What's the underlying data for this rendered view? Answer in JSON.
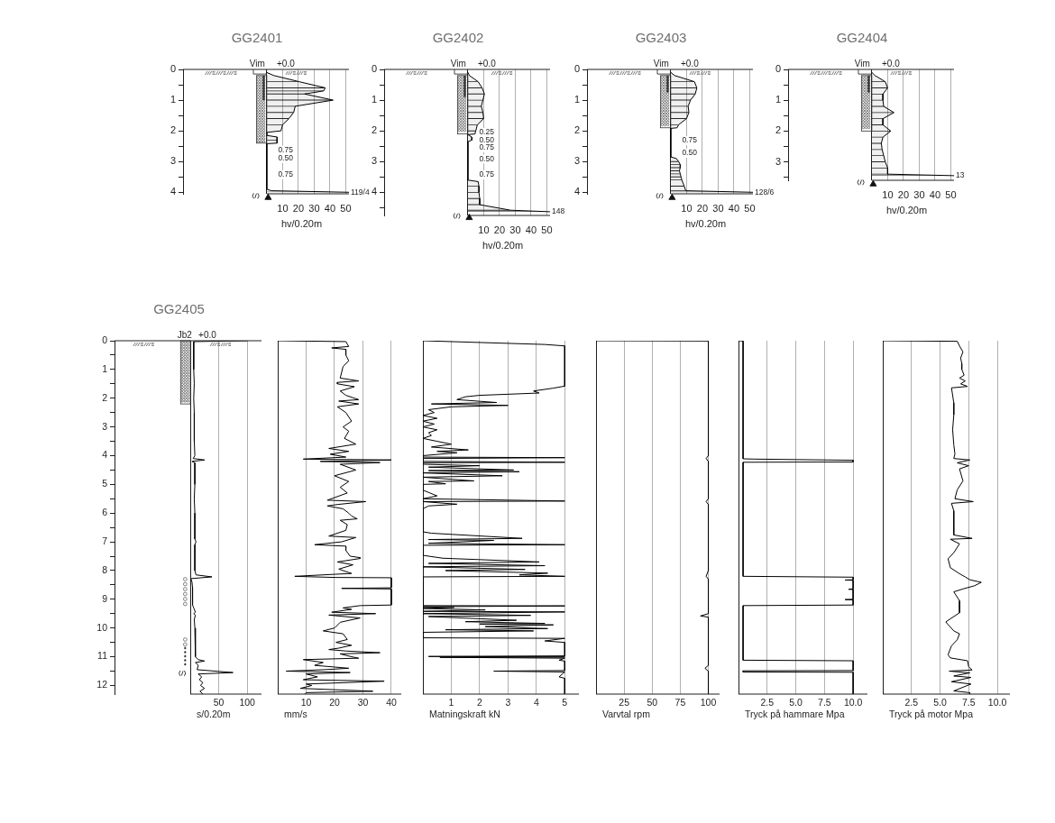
{
  "chart_data": [
    {
      "type": "area",
      "orientation": "horizontal",
      "title": "GG2401",
      "xlabel": "hv/0.20m",
      "x": [
        0.1,
        0.2,
        0.4,
        0.6,
        0.7,
        0.8,
        1,
        1.2,
        1.4,
        1.6,
        1.8,
        2,
        2.05,
        2.15,
        2.2,
        2.3,
        2.4,
        2.42,
        3.9,
        3.95,
        4
      ],
      "values": [
        0,
        4.5,
        20.5,
        37,
        36,
        24,
        42,
        18,
        17,
        14,
        10,
        9,
        0,
        0,
        6.5,
        6.5,
        6.5,
        0,
        0,
        3,
        52
      ],
      "color": "#000000",
      "xlim": [
        -53,
        52
      ],
      "ylim": [
        4.05,
        0
      ],
      "xticks": [
        {
          "value": 0,
          "label": null
        },
        10,
        20,
        30,
        40,
        50
      ],
      "yticks": [
        0,
        {
          "value": 0.5,
          "label": null
        },
        1,
        {
          "value": 1.5,
          "label": null
        },
        2,
        {
          "value": 2.5,
          "label": null
        },
        3,
        {
          "value": 3.5,
          "label": null
        },
        4
      ],
      "grid": "x",
      "ref_lines": [
        {
          "axis": "y",
          "value": 0
        }
      ],
      "annotations": [
        {
          "text": "Vim",
          "x": -6,
          "y": 0
        },
        {
          "text": "+0.0",
          "x": 12,
          "y": 0
        },
        "0.75",
        "0.50",
        "0.75",
        {
          "text": "119/4",
          "x": 52,
          "y": 4
        }
      ]
    },
    {
      "type": "area",
      "orientation": "horizontal",
      "title": "GG2402",
      "xlabel": "hv/0.20m",
      "x": [
        0.1,
        0.2,
        0.4,
        0.6,
        0.8,
        1,
        1.2,
        1.4,
        1.6,
        1.8,
        2,
        2.1,
        2.12,
        2.2,
        2.3,
        2.35,
        3.6,
        3.65,
        3.8,
        4,
        4.2,
        4.4,
        4.58,
        4.63
      ],
      "values": [
        0,
        1,
        6.5,
        9,
        10.5,
        9.5,
        8.5,
        9.5,
        10,
        6,
        5,
        4.5,
        0,
        2.5,
        2.5,
        0,
        0,
        6.5,
        7,
        7,
        7.5,
        7.5,
        27,
        52
      ],
      "color": "#000000",
      "xlim": [
        -53,
        52
      ],
      "ylim": [
        4.75,
        0
      ],
      "xticks": [
        {
          "value": 0,
          "label": null
        },
        10,
        20,
        30,
        40,
        50
      ],
      "yticks": [
        0,
        {
          "value": 0.5,
          "label": null
        },
        1,
        {
          "value": 1.5,
          "label": null
        },
        2,
        {
          "value": 2.5,
          "label": null
        },
        3,
        {
          "value": 3.5,
          "label": null
        },
        4,
        {
          "value": 4.5,
          "label": null
        }
      ],
      "grid": "x",
      "ref_lines": [
        {
          "axis": "y",
          "value": 0
        }
      ],
      "annotations": [
        {
          "text": "Vim",
          "x": -6,
          "y": 0
        },
        {
          "text": "+0.0",
          "x": 12,
          "y": 0
        },
        "0.25",
        "0.50",
        "0.75",
        "0.50",
        "0.75",
        {
          "text": "148",
          "x": 52,
          "y": 4.63
        }
      ]
    },
    {
      "type": "area",
      "orientation": "horizontal",
      "title": "GG2403",
      "xlabel": "hv/0.20m",
      "x": [
        0.1,
        0.2,
        0.4,
        0.6,
        0.8,
        1,
        1.2,
        1.4,
        1.6,
        1.8,
        1.9,
        1.92,
        2.85,
        2.9,
        3,
        3.1,
        3.2,
        3.3,
        3.4,
        3.5,
        3.6,
        3.8,
        3.95,
        4
      ],
      "values": [
        0,
        2.5,
        15,
        16.5,
        15.5,
        12.5,
        11,
        11.5,
        10,
        5,
        4,
        0,
        0,
        3.5,
        5,
        6,
        6,
        5.5,
        6,
        6.5,
        7,
        8.5,
        9.5,
        52
      ],
      "color": "#000000",
      "xlim": [
        -53,
        52
      ],
      "ylim": [
        4.05,
        0
      ],
      "xticks": [
        {
          "value": 0,
          "label": null
        },
        10,
        20,
        30,
        40,
        50
      ],
      "yticks": [
        0,
        {
          "value": 0.5,
          "label": null
        },
        1,
        {
          "value": 1.5,
          "label": null
        },
        2,
        {
          "value": 2.5,
          "label": null
        },
        3,
        {
          "value": 3.5,
          "label": null
        },
        4
      ],
      "grid": "x",
      "ref_lines": [
        {
          "axis": "y",
          "value": 0
        }
      ],
      "annotations": [
        {
          "text": "Vim",
          "x": -6,
          "y": 0
        },
        {
          "text": "+0.0",
          "x": 12,
          "y": 0
        },
        "0.75",
        "0.50",
        {
          "text": "128/6",
          "x": 52,
          "y": 4
        }
      ]
    },
    {
      "type": "area",
      "orientation": "horizontal",
      "title": "GG2404",
      "xlabel": "hv/0.20m",
      "x": [
        0.1,
        0.2,
        0.4,
        0.6,
        0.8,
        1,
        1.2,
        1.4,
        1.6,
        1.8,
        2,
        2.2,
        2.4,
        2.6,
        2.8,
        3,
        3.2,
        3.4,
        3.45
      ],
      "values": [
        0,
        2,
        8.5,
        10,
        7,
        7,
        7.5,
        14,
        7,
        7,
        12,
        7,
        6,
        6.5,
        7.5,
        8.5,
        10,
        10,
        52
      ],
      "color": "#000000",
      "xlim": [
        -53,
        52
      ],
      "ylim": [
        3.6,
        0
      ],
      "xticks": [
        {
          "value": 0,
          "label": null
        },
        10,
        20,
        30,
        40,
        50
      ],
      "yticks": [
        0,
        {
          "value": 0.5,
          "label": null
        },
        1,
        {
          "value": 1.5,
          "label": null
        },
        2,
        {
          "value": 2.5,
          "label": null
        },
        3,
        {
          "value": 3.5,
          "label": null
        }
      ],
      "grid": "x",
      "ref_lines": [
        {
          "axis": "y",
          "value": 0
        }
      ],
      "annotations": [
        {
          "text": "Vim",
          "x": -6,
          "y": 0
        },
        {
          "text": "+0.0",
          "x": 12,
          "y": 0
        },
        {
          "text": "13",
          "x": 52,
          "y": 3.45
        }
      ]
    },
    {
      "type": "line",
      "orientation": "horizontal",
      "title": "GG2405",
      "xlabel": "s/0.20m",
      "x": [
        0,
        0.03,
        0.5,
        1,
        1.5,
        2,
        2.5,
        3,
        3.5,
        4,
        4.1,
        4.15,
        4.2,
        4.25,
        4.5,
        5,
        5.5,
        6,
        6.5,
        6.9,
        7,
        7.1,
        7.5,
        8,
        8.15,
        8.22,
        8.28,
        8.4,
        8.6,
        9,
        9.2,
        9.3,
        9.45,
        9.5,
        9.55,
        9.7,
        10,
        10.5,
        11,
        11.1,
        11.15,
        11.2,
        11.3,
        11.45,
        11.55,
        11.6,
        11.7,
        11.8,
        11.9,
        12,
        12.1,
        12.2,
        12.3
      ],
      "values": [
        100,
        6,
        6,
        6,
        7,
        6,
        7,
        7,
        7,
        8,
        5,
        25,
        3,
        8,
        8,
        8,
        7,
        8,
        8,
        8,
        10,
        8,
        8,
        8,
        10,
        38,
        1,
        3,
        4,
        4,
        4,
        6,
        9,
        6,
        9,
        7,
        8,
        9,
        9,
        14,
        25,
        9,
        14,
        12,
        75,
        14,
        20,
        16,
        22,
        18,
        25,
        17,
        22
      ],
      "color": "#000000",
      "xlim": [
        -133,
        125
      ],
      "ylim": [
        12.3,
        0
      ],
      "xticks": [
        {
          "value": 0,
          "label": null
        },
        50,
        100
      ],
      "yticks": [
        0,
        {
          "value": 0.5,
          "label": null
        },
        1,
        {
          "value": 1.5,
          "label": null
        },
        2,
        {
          "value": 2.5,
          "label": null
        },
        3,
        {
          "value": 3.5,
          "label": null
        },
        4,
        {
          "value": 4.5,
          "label": null
        },
        5,
        {
          "value": 5.5,
          "label": null
        },
        6,
        {
          "value": 6.5,
          "label": null
        },
        7,
        {
          "value": 7.5,
          "label": null
        },
        8,
        {
          "value": 8.5,
          "label": null
        },
        9,
        {
          "value": 9.5,
          "label": null
        },
        10,
        {
          "value": 10.5,
          "label": null
        },
        11,
        {
          "value": 11.5,
          "label": null
        },
        12
      ],
      "grid": "x",
      "ref_lines": [
        {
          "axis": "y",
          "value": 0
        }
      ],
      "annotations": [
        {
          "text": "Jb2",
          "x": -10,
          "y": 0
        },
        {
          "text": "+0.0",
          "x": 30,
          "y": 0
        }
      ]
    },
    {
      "type": "line",
      "orientation": "horizontal",
      "xlabel": "mm/s",
      "x": [
        0,
        0.03,
        0.2,
        0.25,
        0.3,
        0.5,
        0.7,
        0.9,
        1.1,
        1.3,
        1.4,
        1.45,
        1.5,
        1.6,
        1.75,
        1.9,
        2.05,
        2.1,
        2.2,
        2.3,
        2.5,
        2.8,
        3,
        3.15,
        3.4,
        3.6,
        3.75,
        3.85,
        3.95,
        4.05,
        4.12,
        4.15,
        4.2,
        4.24,
        4.3,
        4.5,
        4.7,
        4.9,
        5.1,
        5.3,
        5.55,
        5.6,
        5.7,
        5.75,
        5.85,
        6,
        6.1,
        6.2,
        6.25,
        6.4,
        6.6,
        6.8,
        6.85,
        7,
        7.1,
        7.15,
        7.3,
        7.5,
        7.55,
        7.58,
        7.7,
        7.8,
        7.95,
        8.1,
        8.2,
        8.24,
        8.25,
        8.6,
        8.62,
        8.64,
        9.2,
        9.22,
        9.3,
        9.35,
        9.45,
        9.5,
        9.55,
        9.65,
        9.8,
        10,
        10.1,
        10.2,
        10.4,
        10.5,
        10.6,
        10.7,
        10.75,
        10.8,
        10.86,
        10.9,
        11,
        11.05,
        11.1,
        11.2,
        11.3,
        11.4,
        11.45,
        11.5,
        11.55,
        11.6,
        11.7,
        11.8,
        11.85,
        11.95,
        12,
        12.1,
        12.2,
        12.25,
        12.3
      ],
      "values": [
        0,
        24,
        25,
        19,
        24,
        24,
        25,
        23,
        22.5,
        22,
        28.5,
        21,
        21,
        27,
        22,
        24,
        28.5,
        21.5,
        28.5,
        21,
        24,
        26,
        23,
        25,
        23.5,
        27.5,
        18,
        25,
        18.5,
        24,
        9,
        40,
        15,
        36,
        22,
        27.5,
        20,
        25,
        22,
        24.5,
        17.5,
        31,
        21,
        17.5,
        23,
        25,
        26,
        28,
        22,
        24.5,
        24,
        18,
        27.5,
        22.5,
        13,
        24,
        24,
        25.5,
        29,
        29,
        21,
        26.5,
        21.5,
        26,
        6,
        20,
        40,
        40,
        22.5,
        40,
        40,
        29,
        23,
        26,
        19,
        34.5,
        18,
        29,
        22,
        20,
        16,
        23,
        24.5,
        20.5,
        26,
        21.5,
        18,
        24,
        36,
        22,
        26,
        28.5,
        9,
        16,
        13,
        25,
        16.5,
        3,
        25.5,
        10,
        14,
        9,
        37.5,
        10,
        12,
        8,
        33.5,
        10,
        9.5
      ],
      "color": "#000000",
      "xlim": [
        0,
        43.5
      ],
      "ylim": [
        12.3,
        0
      ],
      "xticks": [
        {
          "value": 0,
          "label": null
        },
        10,
        20,
        30,
        40
      ],
      "grid": "x",
      "tick_labels": "x"
    },
    {
      "type": "line",
      "orientation": "horizontal",
      "xlabel": "Matningskraft kN",
      "x": [
        0,
        0.13,
        0.18,
        1.58,
        1.65,
        1.75,
        1.82,
        1.9,
        1.95,
        2.05,
        2.15,
        2.2,
        2.25,
        2.3,
        2.4,
        2.5,
        2.6,
        2.7,
        2.8,
        2.9,
        3,
        3.1,
        3.2,
        3.3,
        3.4,
        3.5,
        3.6,
        3.7,
        3.8,
        3.85,
        3.9,
        4,
        4.05,
        4.07,
        4.1,
        4.2,
        4.23,
        4.25,
        4.3,
        4.35,
        4.4,
        4.5,
        4.52,
        4.56,
        4.6,
        4.7,
        4.75,
        4.88,
        4.9,
        4.98,
        5,
        5.2,
        5.4,
        5.5,
        5.58,
        5.6,
        5.69,
        5.75,
        5.85,
        6.65,
        6.7,
        6.88,
        6.92,
        6.95,
        7.05,
        7.1,
        7.12,
        7.47,
        7.57,
        7.7,
        7.75,
        7.83,
        7.87,
        7.96,
        8,
        8.09,
        8.15,
        8.2,
        8.22,
        9.22,
        9.23,
        9.26,
        9.28,
        9.32,
        9.37,
        9.42,
        9.44,
        9.5,
        9.56,
        9.6,
        9.73,
        9.78,
        9.84,
        9.86,
        9.89,
        9.95,
        10.02,
        10.06,
        10.1,
        10.15,
        10.34,
        10.36,
        10.45,
        10.5,
        10.97,
        10.99,
        11.01,
        11.02,
        11.05,
        11.12,
        11.15,
        11.48,
        11.5,
        11.53,
        11.7,
        11.75,
        12.3
      ],
      "values": [
        0,
        4.3,
        5,
        5,
        4.6,
        3.9,
        4.1,
        2,
        1.5,
        1.2,
        2.6,
        0.3,
        3,
        1,
        0.2,
        0.4,
        0,
        0.5,
        0,
        0.4,
        0,
        0.5,
        0.2,
        0.3,
        0,
        0.5,
        1,
        0.3,
        1.6,
        0.5,
        1.2,
        0,
        0,
        5,
        0,
        0,
        5,
        0,
        0,
        2,
        0.2,
        3.2,
        0.2,
        3.4,
        0,
        2.8,
        0,
        1.8,
        0.2,
        0.8,
        0,
        0,
        0.5,
        0,
        5,
        0,
        1.2,
        0.2,
        0,
        0,
        0.3,
        3.5,
        0.2,
        2.5,
        0.2,
        5,
        0,
        0,
        0.7,
        4.1,
        0.2,
        4.3,
        0,
        3.6,
        0.8,
        4.4,
        3.4,
        5,
        0,
        0,
        5,
        0,
        1.1,
        0,
        2.2,
        0,
        5,
        0,
        3.8,
        0.2,
        3.3,
        1.5,
        4.3,
        2,
        4.6,
        2.2,
        4.4,
        0.8,
        3.9,
        0,
        0,
        5,
        4.3,
        5,
        5,
        0.2,
        5,
        0.6,
        5,
        4.8,
        5,
        5,
        2.5,
        5,
        4.8,
        5,
        5
      ],
      "color": "#000000",
      "xlim": [
        0,
        5.5
      ],
      "ylim": [
        12.3,
        0
      ],
      "xticks": [
        {
          "value": 0,
          "label": null
        },
        1,
        2,
        3,
        4,
        5
      ],
      "grid": "x",
      "tick_labels": "x"
    },
    {
      "type": "line",
      "orientation": "horizontal",
      "xlabel": "Varvtal rpm",
      "x": [
        0,
        0.01,
        4,
        4.1,
        4.2,
        5.5,
        5.6,
        5.7,
        8,
        8.2,
        8.3,
        9.5,
        9.58,
        9.62,
        11.3,
        11.4,
        11.5,
        12.3
      ],
      "values": [
        0,
        100,
        100,
        98,
        100,
        100,
        98,
        100,
        100,
        98,
        100,
        100,
        93,
        100,
        100,
        97,
        100,
        100
      ],
      "color": "#000000",
      "xlim": [
        0,
        110
      ],
      "ylim": [
        12.3,
        0
      ],
      "xticks": [
        {
          "value": 0,
          "label": null
        },
        25,
        50,
        75,
        100
      ],
      "grid": "x",
      "tick_labels": "x"
    },
    {
      "type": "line",
      "orientation": "horizontal",
      "xlabel": "Tryck på hammare Mpa",
      "x": [
        0,
        0.01,
        4.11,
        4.12,
        4.16,
        4.22,
        4.23,
        8.2,
        8.23,
        8.32,
        8.33,
        8.34,
        8.64,
        8.65,
        8.66,
        9,
        9.01,
        9.02,
        9.2,
        9.22,
        11.12,
        11.14,
        11.48,
        11.49,
        11.53,
        11.54,
        12.3
      ],
      "values": [
        0,
        0.4,
        0.4,
        1.4,
        10,
        10,
        0.4,
        0.4,
        10,
        10,
        9.3,
        10,
        10,
        9.6,
        10,
        10,
        9.3,
        10,
        10,
        0.4,
        0.4,
        10,
        10,
        0.4,
        0.4,
        10,
        10
      ],
      "color": "#000000",
      "xlim": [
        0,
        11.25
      ],
      "ylim": [
        12.3,
        0
      ],
      "xticks": [
        {
          "value": 0,
          "label": null
        },
        2.5,
        {
          "value": 5,
          "label": "5.0"
        },
        7.5,
        {
          "value": 10,
          "label": "10.0"
        }
      ],
      "grid": "x",
      "tick_labels": "x"
    },
    {
      "type": "line",
      "orientation": "horizontal",
      "xlabel": "Tryck på motor Mpa",
      "x": [
        0,
        0.02,
        0.18,
        0.39,
        0.6,
        0.8,
        1,
        1.2,
        1.3,
        1.4,
        1.5,
        1.59,
        1.64,
        2.16,
        2.58,
        3.1,
        3.62,
        3.94,
        4.1,
        4.15,
        4.25,
        4.35,
        4.46,
        4.88,
        5.19,
        5.5,
        5.6,
        5.66,
        5.92,
        6.76,
        6.88,
        6.91,
        7.07,
        7.38,
        7.59,
        7.9,
        8.11,
        8.22,
        8.32,
        8.41,
        8.53,
        8.64,
        8.74,
        9.05,
        9.47,
        9.68,
        9.79,
        10.1,
        10.2,
        10.41,
        10.62,
        10.93,
        11.04,
        11.14,
        11.35,
        11.46,
        11.5,
        11.56,
        11.67,
        11.72,
        11.87,
        11.95,
        12.19,
        12.25,
        12.3
      ],
      "values": [
        0,
        6.5,
        6.7,
        7,
        6.8,
        6.9,
        6.9,
        7.1,
        6.7,
        7.2,
        6.8,
        7.4,
        6,
        6.2,
        6.2,
        6.1,
        6.2,
        6.3,
        6.2,
        7.6,
        6.5,
        7.5,
        6.7,
        7,
        6.5,
        6.3,
        7.9,
        6,
        6.2,
        6.2,
        7.8,
        5.9,
        6.7,
        6.2,
        5.7,
        5.9,
        6.7,
        7.2,
        7.6,
        8.6,
        8,
        7,
        6.2,
        6.7,
        6.7,
        5.9,
        5.5,
        6.2,
        6.7,
        6.5,
        6,
        5.7,
        5.9,
        7.4,
        7.5,
        7.8,
        5.8,
        7.6,
        6.2,
        7.7,
        6,
        7.7,
        6.2,
        7.6,
        7.6
      ],
      "color": "#000000",
      "xlim": [
        0,
        11.1
      ],
      "ylim": [
        12.3,
        0
      ],
      "xticks": [
        {
          "value": 0,
          "label": null
        },
        2.5,
        {
          "value": 5,
          "label": "5.0"
        },
        7.5,
        {
          "value": 10,
          "label": "10.0"
        }
      ],
      "grid": "x",
      "tick_labels": "x"
    }
  ]
}
